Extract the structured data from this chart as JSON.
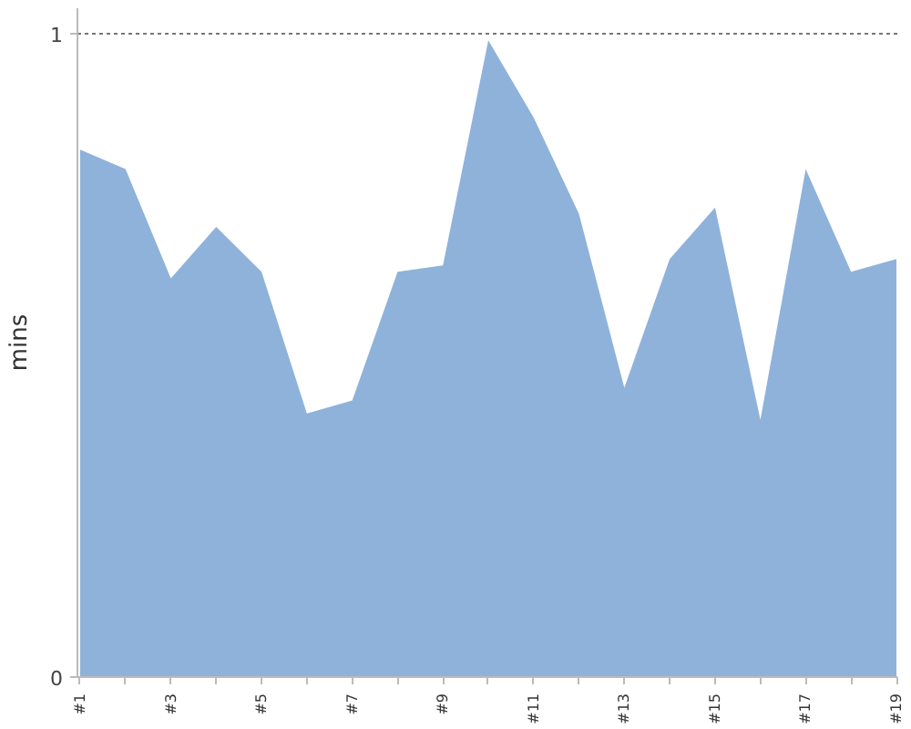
{
  "chart_data": {
    "type": "area",
    "ylabel": "mins",
    "categories": [
      "#1",
      null,
      "#3",
      null,
      "#5",
      null,
      "#7",
      null,
      "#9",
      null,
      "#11",
      null,
      "#13",
      null,
      "#15",
      null,
      "#17",
      null,
      "#19"
    ],
    "values": [
      0.82,
      0.79,
      0.62,
      0.7,
      0.63,
      0.41,
      0.43,
      0.63,
      0.64,
      0.99,
      0.87,
      0.72,
      0.45,
      0.65,
      0.73,
      0.4,
      0.79,
      0.63,
      0.65
    ],
    "color": "#8fb2db",
    "ylim": [
      0,
      1.04
    ],
    "yticks": [
      0,
      1
    ],
    "grid": "y"
  }
}
